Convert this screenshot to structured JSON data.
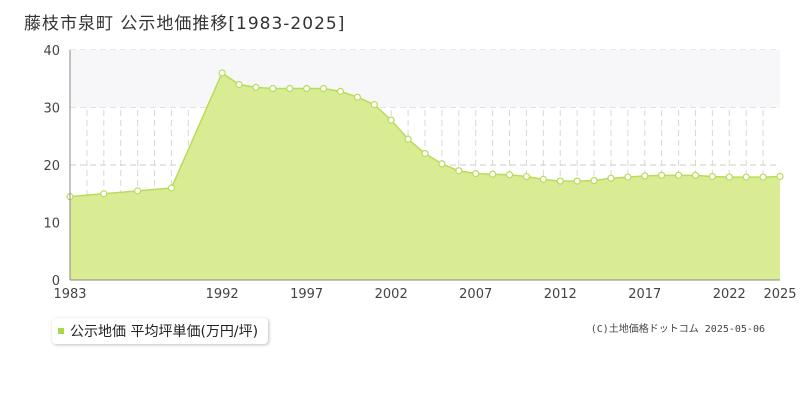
{
  "title": "藤枝市泉町 公示地価推移[1983-2025]",
  "legend": {
    "label": "公示地価 平均坪単価(万円/坪)"
  },
  "credit": "(C)土地価格ドットコム 2025-05-06",
  "colors": {
    "fill": "#d9ec94",
    "line": "#b8dc5a",
    "point_fill": "#ffffff",
    "legend": "#a8d84a"
  },
  "chart_data": {
    "type": "area",
    "ylim": [
      0,
      40
    ],
    "yticks": [
      0,
      10,
      20,
      30,
      40
    ],
    "xlim": [
      1983,
      2025
    ],
    "xticks": [
      1983,
      1992,
      1997,
      2002,
      2007,
      2012,
      2017,
      2022,
      2025
    ],
    "grid": true,
    "legend_placement": "bottom-left",
    "series": [
      {
        "name": "公示地価 平均坪単価(万円/坪)",
        "x": [
          1983,
          1985,
          1987,
          1989,
          1992,
          1993,
          1994,
          1995,
          1996,
          1997,
          1998,
          1999,
          2000,
          2001,
          2002,
          2003,
          2004,
          2005,
          2006,
          2007,
          2008,
          2009,
          2010,
          2011,
          2012,
          2013,
          2014,
          2015,
          2016,
          2017,
          2018,
          2019,
          2020,
          2021,
          2022,
          2023,
          2024,
          2025
        ],
        "values": [
          14.5,
          15.0,
          15.5,
          16.0,
          36.0,
          34.0,
          33.5,
          33.3,
          33.3,
          33.3,
          33.3,
          32.8,
          31.8,
          30.5,
          27.8,
          24.5,
          22.0,
          20.2,
          19.0,
          18.5,
          18.4,
          18.3,
          18.0,
          17.5,
          17.2,
          17.2,
          17.3,
          17.7,
          17.9,
          18.1,
          18.2,
          18.2,
          18.2,
          18.0,
          17.9,
          17.9,
          17.9,
          18.0
        ]
      }
    ]
  }
}
